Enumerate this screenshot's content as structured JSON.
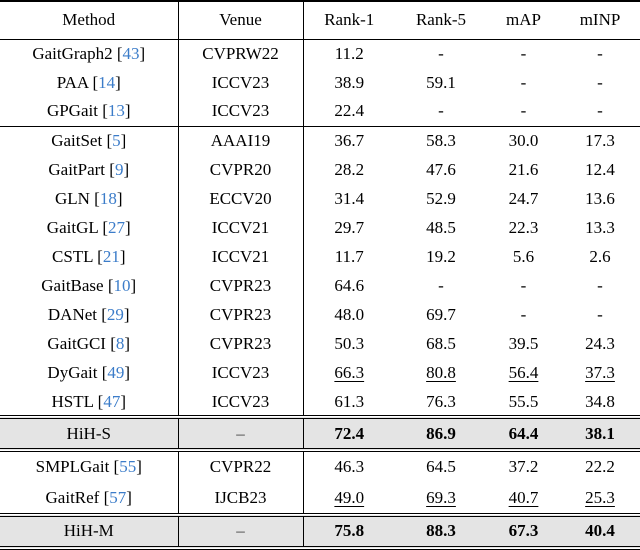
{
  "page": {
    "background": "#ffffff",
    "text_color": "#000000",
    "citation_color": "#3b7cc9",
    "highlight_row_bg": "#e4e4e4"
  },
  "table": {
    "columns": [
      "Method",
      "Venue",
      "Rank-1",
      "Rank-5",
      "mAP",
      "mINP"
    ],
    "groups": [
      {
        "name": "appearance-free",
        "separator": "single",
        "rows": [
          {
            "method": "GaitGraph2",
            "cite": "43",
            "venue": "CVPRW22",
            "values": [
              "11.2",
              "-",
              "-",
              "-"
            ]
          },
          {
            "method": "PAA",
            "cite": "14",
            "venue": "ICCV23",
            "values": [
              "38.9",
              "59.1",
              "-",
              "-"
            ]
          },
          {
            "method": "GPGait",
            "cite": "13",
            "venue": "ICCV23",
            "values": [
              "22.4",
              "-",
              "-",
              "-"
            ]
          }
        ]
      },
      {
        "name": "silhouette-based",
        "separator": "double",
        "rows": [
          {
            "method": "GaitSet",
            "cite": "5",
            "venue": "AAAI19",
            "values": [
              "36.7",
              "58.3",
              "30.0",
              "17.3"
            ]
          },
          {
            "method": "GaitPart",
            "cite": "9",
            "venue": "CVPR20",
            "values": [
              "28.2",
              "47.6",
              "21.6",
              "12.4"
            ]
          },
          {
            "method": "GLN",
            "cite": "18",
            "venue": "ECCV20",
            "values": [
              "31.4",
              "52.9",
              "24.7",
              "13.6"
            ]
          },
          {
            "method": "GaitGL",
            "cite": "27",
            "venue": "ICCV21",
            "values": [
              "29.7",
              "48.5",
              "22.3",
              "13.3"
            ]
          },
          {
            "method": "CSTL",
            "cite": "21",
            "venue": "ICCV21",
            "values": [
              "11.7",
              "19.2",
              "5.6",
              "2.6"
            ]
          },
          {
            "method": "GaitBase",
            "cite": "10",
            "venue": "CVPR23",
            "values": [
              "64.6",
              "-",
              "-",
              "-"
            ]
          },
          {
            "method": "DANet",
            "cite": "29",
            "venue": "CVPR23",
            "values": [
              "48.0",
              "69.7",
              "-",
              "-"
            ]
          },
          {
            "method": "GaitGCI",
            "cite": "8",
            "venue": "CVPR23",
            "values": [
              "50.3",
              "68.5",
              "39.5",
              "24.3"
            ]
          },
          {
            "method": "DyGait",
            "cite": "49",
            "venue": "ICCV23",
            "values": [
              "66.3",
              "80.8",
              "56.4",
              "37.3"
            ],
            "underline": true
          },
          {
            "method": "HSTL",
            "cite": "47",
            "venue": "ICCV23",
            "values": [
              "61.3",
              "76.3",
              "55.5",
              "34.8"
            ]
          }
        ]
      },
      {
        "name": "hih-s",
        "separator": "double",
        "highlight": true,
        "rows": [
          {
            "method": "HiH-S",
            "venue": "–",
            "values": [
              "72.4",
              "86.9",
              "64.4",
              "38.1"
            ],
            "bold": true
          }
        ]
      },
      {
        "name": "multimodal",
        "separator": "double",
        "pad_extra": true,
        "rows": [
          {
            "method": "SMPLGait",
            "cite": "55",
            "venue": "CVPR22",
            "values": [
              "46.3",
              "64.5",
              "37.2",
              "22.2"
            ]
          },
          {
            "method": "GaitRef",
            "cite": "57",
            "venue": "IJCB23",
            "values": [
              "49.0",
              "69.3",
              "40.7",
              "25.3"
            ],
            "underline": true
          }
        ]
      },
      {
        "name": "hih-m",
        "separator": "double",
        "highlight": true,
        "rows": [
          {
            "method": "HiH-M",
            "venue": "–",
            "values": [
              "75.8",
              "88.3",
              "67.3",
              "40.4"
            ],
            "bold": true
          }
        ]
      }
    ]
  }
}
